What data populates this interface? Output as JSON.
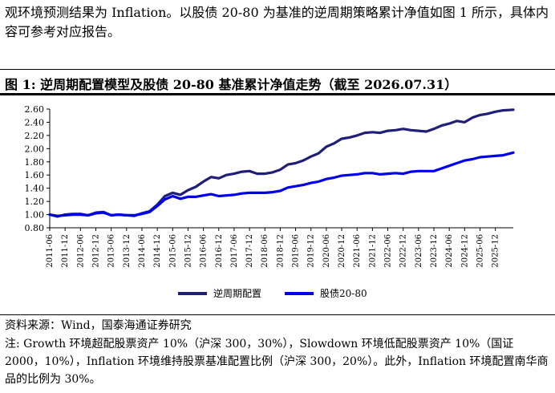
{
  "intro_text": "观环境预测结果为 Inflation。以股债 20-80 为基准的逆周期策略累计净值如图 1 所示，具体内容可参考对应报告。",
  "figure_title": "图 1:  逆周期配置模型及股债 20-80 基准累计净值走势（截至 2026.07.31）",
  "source_text": "资料来源：Wind，国泰海通证券研究",
  "note_text": "注: Growth 环境超配股票资产 10%（沪深 300，30%），Slowdown 环境低配股票资产 10%（国证 2000，10%），Inflation 环境维持股票基准配置比例（沪深 300，20%）。此外，Inflation 环境配置南华商品的比例为 30%。",
  "chart_data": {
    "type": "line",
    "title": "",
    "xlabel": "",
    "ylabel": "",
    "ylim": [
      0.8,
      2.6
    ],
    "yticks": [
      "0.80",
      "1.00",
      "1.20",
      "1.40",
      "1.60",
      "1.80",
      "2.00",
      "2.20",
      "2.40",
      "2.60"
    ],
    "xticks": [
      "2011-06",
      "2011-12",
      "2012-06",
      "2012-12",
      "2013-06",
      "2013-12",
      "2014-06",
      "2014-12",
      "2015-06",
      "2015-12",
      "2016-06",
      "2016-12",
      "2017-06",
      "2017-12",
      "2018-06",
      "2018-12",
      "2019-06",
      "2019-12",
      "2020-06",
      "2020-12",
      "2021-06",
      "2021-12",
      "2022-06",
      "2022-12",
      "2023-06",
      "2023-12",
      "2024-06",
      "2024-12",
      "2025-06",
      "2025-12"
    ],
    "x_start": "2011-06",
    "x_end": "2026-07",
    "grid": false,
    "legend_position": "bottom",
    "series": [
      {
        "name": "逆周期配置",
        "color": "#1f1f7a",
        "points": [
          [
            "2011-06",
            1.0
          ],
          [
            "2011-09",
            0.97
          ],
          [
            "2011-12",
            1.0
          ],
          [
            "2012-03",
            1.01
          ],
          [
            "2012-06",
            1.01
          ],
          [
            "2012-09",
            0.99
          ],
          [
            "2012-12",
            1.03
          ],
          [
            "2013-03",
            1.04
          ],
          [
            "2013-06",
            0.99
          ],
          [
            "2013-09",
            1.0
          ],
          [
            "2013-12",
            0.99
          ],
          [
            "2014-03",
            0.98
          ],
          [
            "2014-06",
            1.02
          ],
          [
            "2014-09",
            1.05
          ],
          [
            "2014-12",
            1.15
          ],
          [
            "2015-03",
            1.28
          ],
          [
            "2015-06",
            1.33
          ],
          [
            "2015-09",
            1.3
          ],
          [
            "2015-12",
            1.37
          ],
          [
            "2016-03",
            1.42
          ],
          [
            "2016-06",
            1.5
          ],
          [
            "2016-09",
            1.57
          ],
          [
            "2016-12",
            1.55
          ],
          [
            "2017-03",
            1.6
          ],
          [
            "2017-06",
            1.62
          ],
          [
            "2017-09",
            1.65
          ],
          [
            "2017-12",
            1.66
          ],
          [
            "2018-03",
            1.62
          ],
          [
            "2018-06",
            1.62
          ],
          [
            "2018-09",
            1.64
          ],
          [
            "2018-12",
            1.68
          ],
          [
            "2019-03",
            1.76
          ],
          [
            "2019-06",
            1.78
          ],
          [
            "2019-09",
            1.82
          ],
          [
            "2019-12",
            1.88
          ],
          [
            "2020-03",
            1.93
          ],
          [
            "2020-06",
            2.03
          ],
          [
            "2020-09",
            2.08
          ],
          [
            "2020-12",
            2.15
          ],
          [
            "2021-03",
            2.17
          ],
          [
            "2021-06",
            2.2
          ],
          [
            "2021-09",
            2.24
          ],
          [
            "2021-12",
            2.25
          ],
          [
            "2022-03",
            2.24
          ],
          [
            "2022-06",
            2.27
          ],
          [
            "2022-09",
            2.28
          ],
          [
            "2022-12",
            2.3
          ],
          [
            "2023-03",
            2.28
          ],
          [
            "2023-06",
            2.27
          ],
          [
            "2023-09",
            2.26
          ],
          [
            "2023-12",
            2.3
          ],
          [
            "2024-03",
            2.35
          ],
          [
            "2024-06",
            2.38
          ],
          [
            "2024-09",
            2.42
          ],
          [
            "2024-12",
            2.4
          ],
          [
            "2025-03",
            2.47
          ],
          [
            "2025-06",
            2.51
          ],
          [
            "2025-09",
            2.53
          ],
          [
            "2025-12",
            2.56
          ],
          [
            "2026-03",
            2.58
          ],
          [
            "2026-07",
            2.59
          ]
        ]
      },
      {
        "name": "股债20-80",
        "color": "#0000ee",
        "points": [
          [
            "2011-06",
            1.0
          ],
          [
            "2011-09",
            0.98
          ],
          [
            "2011-12",
            0.99
          ],
          [
            "2012-03",
            1.0
          ],
          [
            "2012-06",
            1.0
          ],
          [
            "2012-09",
            0.99
          ],
          [
            "2012-12",
            1.02
          ],
          [
            "2013-03",
            1.03
          ],
          [
            "2013-06",
            0.99
          ],
          [
            "2013-09",
            1.0
          ],
          [
            "2013-12",
            0.99
          ],
          [
            "2014-03",
            0.99
          ],
          [
            "2014-06",
            1.01
          ],
          [
            "2014-09",
            1.04
          ],
          [
            "2014-12",
            1.13
          ],
          [
            "2015-03",
            1.23
          ],
          [
            "2015-06",
            1.28
          ],
          [
            "2015-09",
            1.24
          ],
          [
            "2015-12",
            1.27
          ],
          [
            "2016-03",
            1.27
          ],
          [
            "2016-06",
            1.29
          ],
          [
            "2016-09",
            1.31
          ],
          [
            "2016-12",
            1.28
          ],
          [
            "2017-03",
            1.29
          ],
          [
            "2017-06",
            1.3
          ],
          [
            "2017-09",
            1.32
          ],
          [
            "2017-12",
            1.33
          ],
          [
            "2018-03",
            1.33
          ],
          [
            "2018-06",
            1.33
          ],
          [
            "2018-09",
            1.34
          ],
          [
            "2018-12",
            1.36
          ],
          [
            "2019-03",
            1.41
          ],
          [
            "2019-06",
            1.43
          ],
          [
            "2019-09",
            1.45
          ],
          [
            "2019-12",
            1.48
          ],
          [
            "2020-03",
            1.5
          ],
          [
            "2020-06",
            1.54
          ],
          [
            "2020-09",
            1.56
          ],
          [
            "2020-12",
            1.59
          ],
          [
            "2021-03",
            1.6
          ],
          [
            "2021-06",
            1.61
          ],
          [
            "2021-09",
            1.63
          ],
          [
            "2021-12",
            1.63
          ],
          [
            "2022-03",
            1.61
          ],
          [
            "2022-06",
            1.62
          ],
          [
            "2022-09",
            1.63
          ],
          [
            "2022-12",
            1.62
          ],
          [
            "2023-03",
            1.65
          ],
          [
            "2023-06",
            1.66
          ],
          [
            "2023-09",
            1.66
          ],
          [
            "2023-12",
            1.66
          ],
          [
            "2024-03",
            1.7
          ],
          [
            "2024-06",
            1.74
          ],
          [
            "2024-09",
            1.78
          ],
          [
            "2024-12",
            1.82
          ],
          [
            "2025-03",
            1.84
          ],
          [
            "2025-06",
            1.87
          ],
          [
            "2025-09",
            1.88
          ],
          [
            "2025-12",
            1.89
          ],
          [
            "2026-03",
            1.9
          ],
          [
            "2026-07",
            1.94
          ]
        ]
      }
    ]
  }
}
